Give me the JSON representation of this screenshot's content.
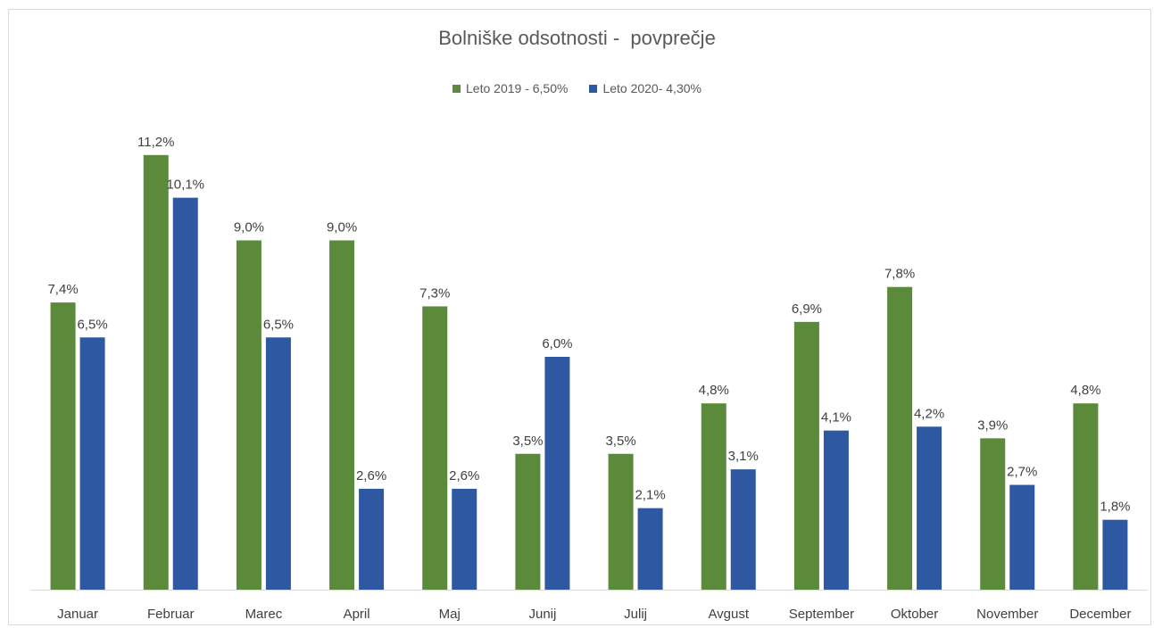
{
  "chart_data": {
    "type": "bar",
    "title": "Bolniške odsotnosti -  povprečje",
    "xlabel": "",
    "ylabel": "",
    "ylim": [
      0,
      12
    ],
    "grid": false,
    "legend_position": "top",
    "categories": [
      "Januar",
      "Februar",
      "Marec",
      "April",
      "Maj",
      "Junij",
      "Julij",
      "Avgust",
      "September",
      "Oktober",
      "November",
      "December"
    ],
    "series": [
      {
        "name": "Leto 2019 - 6,50%",
        "color": "#5a8a3a",
        "values": [
          7.4,
          11.2,
          9.0,
          9.0,
          7.3,
          3.5,
          3.5,
          4.8,
          6.9,
          7.8,
          3.9,
          4.8
        ],
        "labels": [
          "7,4%",
          "11,2%",
          "9,0%",
          "9,0%",
          "7,3%",
          "3,5%",
          "3,5%",
          "4,8%",
          "6,9%",
          "7,8%",
          "3,9%",
          "4,8%"
        ]
      },
      {
        "name": "Leto 2020- 4,30%",
        "color": "#2f58a3",
        "values": [
          6.5,
          10.1,
          6.5,
          2.6,
          2.6,
          6.0,
          2.1,
          3.1,
          4.1,
          4.2,
          2.7,
          1.8
        ],
        "labels": [
          "6,5%",
          "10,1%",
          "6,5%",
          "2,6%",
          "2,6%",
          "6,0%",
          "2,1%",
          "3,1%",
          "4,1%",
          "4,2%",
          "2,7%",
          "1,8%"
        ]
      }
    ]
  }
}
